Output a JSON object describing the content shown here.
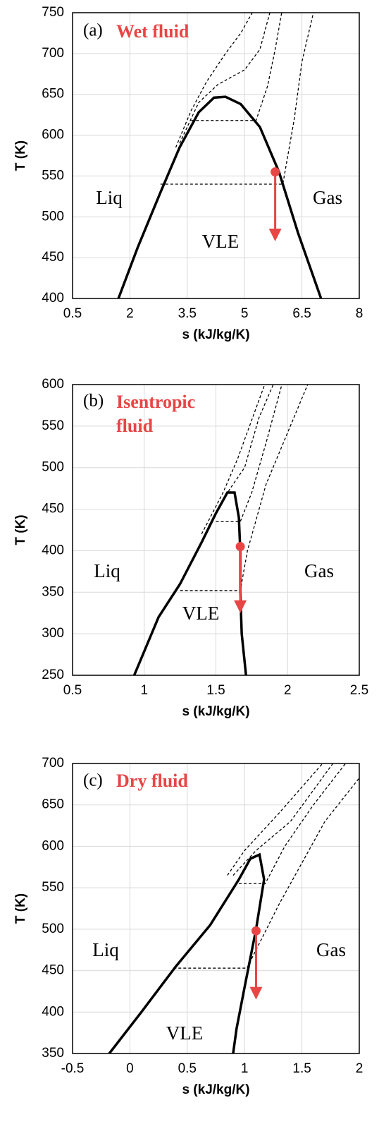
{
  "chart_data": [
    {
      "type": "line",
      "panel": "(a)",
      "title": "Wet fluid",
      "annotations": [
        "Liq",
        "Gas",
        "VLE"
      ],
      "xlabel": "s (kJ/kg/K)",
      "ylabel": "T (K)",
      "xlim": [
        0.5,
        8
      ],
      "ylim": [
        400,
        750
      ],
      "xticks": [
        0.5,
        2,
        3.5,
        5,
        6.5,
        8
      ],
      "yticks": [
        400,
        450,
        500,
        550,
        600,
        650,
        700,
        750
      ],
      "grid": true,
      "series": [
        {
          "color": "#000000",
          "style": "solid",
          "x": [
            1.7,
            2.2,
            2.8,
            3.3,
            3.8,
            4.2,
            4.5,
            4.9,
            5.4,
            5.9,
            6.4,
            7.0
          ],
          "y": [
            400,
            462,
            530,
            585,
            628,
            646,
            647,
            638,
            610,
            555,
            480,
            400
          ]
        },
        {
          "color": "#000000",
          "style": "dashed",
          "x": [
            2.8,
            6.0,
            6.3,
            6.5,
            6.8
          ],
          "y": [
            540,
            540,
            620,
            690,
            750
          ]
        },
        {
          "color": "#000000",
          "style": "dashed",
          "x": [
            3.6,
            5.3,
            5.6,
            5.8,
            5.97
          ],
          "y": [
            618,
            618,
            660,
            705,
            750
          ]
        },
        {
          "color": "#000000",
          "style": "dashed",
          "x": [
            3.3,
            3.8,
            4.3,
            5.0,
            5.4,
            5.66
          ],
          "y": [
            590,
            640,
            662,
            680,
            705,
            750
          ]
        },
        {
          "color": "#000000",
          "style": "dashed",
          "x": [
            3.2,
            3.6,
            4.0,
            4.5,
            4.9,
            5.2
          ],
          "y": [
            585,
            630,
            665,
            700,
            725,
            750
          ]
        }
      ],
      "arrow": {
        "color": "#e84545",
        "x": 5.8,
        "y": [
          555,
          470
        ]
      }
    },
    {
      "type": "line",
      "panel": "(b)",
      "title": "Isentropic fluid",
      "annotations": [
        "Liq",
        "Gas",
        "VLE"
      ],
      "xlabel": "s (kJ/kg/K)",
      "ylabel": "T (K)",
      "xlim": [
        0.5,
        2.5
      ],
      "ylim": [
        250,
        600
      ],
      "xticks": [
        0.5,
        1,
        1.5,
        2,
        2.5
      ],
      "yticks": [
        250,
        300,
        350,
        400,
        450,
        500,
        550,
        600
      ],
      "grid": true,
      "series": [
        {
          "color": "#000000",
          "style": "solid",
          "x": [
            0.93,
            1.1,
            1.25,
            1.4,
            1.5,
            1.58,
            1.63,
            1.66,
            1.67,
            1.67,
            1.68,
            1.71
          ],
          "y": [
            250,
            320,
            360,
            410,
            445,
            470,
            470,
            440,
            400,
            350,
            300,
            250
          ]
        },
        {
          "color": "#000000",
          "style": "dashed",
          "x": [
            1.25,
            1.67,
            1.72,
            1.85,
            2.14
          ],
          "y": [
            352,
            352,
            400,
            480,
            600
          ]
        },
        {
          "color": "#000000",
          "style": "dashed",
          "x": [
            1.5,
            1.67,
            1.75,
            1.85,
            1.96
          ],
          "y": [
            435,
            435,
            470,
            530,
            600
          ]
        },
        {
          "color": "#000000",
          "style": "dashed",
          "x": [
            1.45,
            1.6,
            1.7,
            1.8,
            1.9
          ],
          "y": [
            430,
            475,
            500,
            560,
            600
          ]
        },
        {
          "color": "#000000",
          "style": "dashed",
          "x": [
            1.4,
            1.55,
            1.65,
            1.84
          ],
          "y": [
            420,
            470,
            510,
            600
          ]
        }
      ],
      "arrow": {
        "color": "#e84545",
        "x": 1.67,
        "y": [
          405,
          325
        ]
      }
    },
    {
      "type": "line",
      "panel": "(c)",
      "title": "Dry fluid",
      "annotations": [
        "Liq",
        "Gas",
        "VLE"
      ],
      "xlabel": "s (kJ/kg/K)",
      "ylabel": "T (K)",
      "xlim": [
        -0.5,
        2
      ],
      "ylim": [
        350,
        700
      ],
      "xticks": [
        -0.5,
        0,
        0.5,
        1,
        1.5,
        2
      ],
      "yticks": [
        350,
        400,
        450,
        500,
        550,
        600,
        650,
        700
      ],
      "grid": true,
      "series": [
        {
          "color": "#000000",
          "style": "solid",
          "x": [
            -0.18,
            0.1,
            0.4,
            0.7,
            0.95,
            1.05,
            1.13,
            1.17,
            1.1,
            1.0,
            0.93,
            0.9
          ],
          "y": [
            350,
            400,
            455,
            505,
            560,
            585,
            590,
            560,
            500,
            430,
            380,
            350
          ]
        },
        {
          "color": "#000000",
          "style": "dashed",
          "x": [
            0.38,
            1.02,
            1.3,
            1.7,
            2.1
          ],
          "y": [
            453,
            453,
            530,
            630,
            700
          ]
        },
        {
          "color": "#000000",
          "style": "dashed",
          "x": [
            0.95,
            1.18,
            1.35,
            1.6,
            1.88
          ],
          "y": [
            555,
            555,
            600,
            650,
            700
          ]
        },
        {
          "color": "#000000",
          "style": "dashed",
          "x": [
            0.9,
            1.1,
            1.4,
            1.77
          ],
          "y": [
            565,
            595,
            630,
            700
          ]
        },
        {
          "color": "#000000",
          "style": "dashed",
          "x": [
            0.85,
            1.0,
            1.3,
            1.68
          ],
          "y": [
            565,
            595,
            640,
            700
          ]
        }
      ],
      "arrow": {
        "color": "#e84545",
        "x": 1.1,
        "y": [
          498,
          415
        ]
      }
    }
  ]
}
